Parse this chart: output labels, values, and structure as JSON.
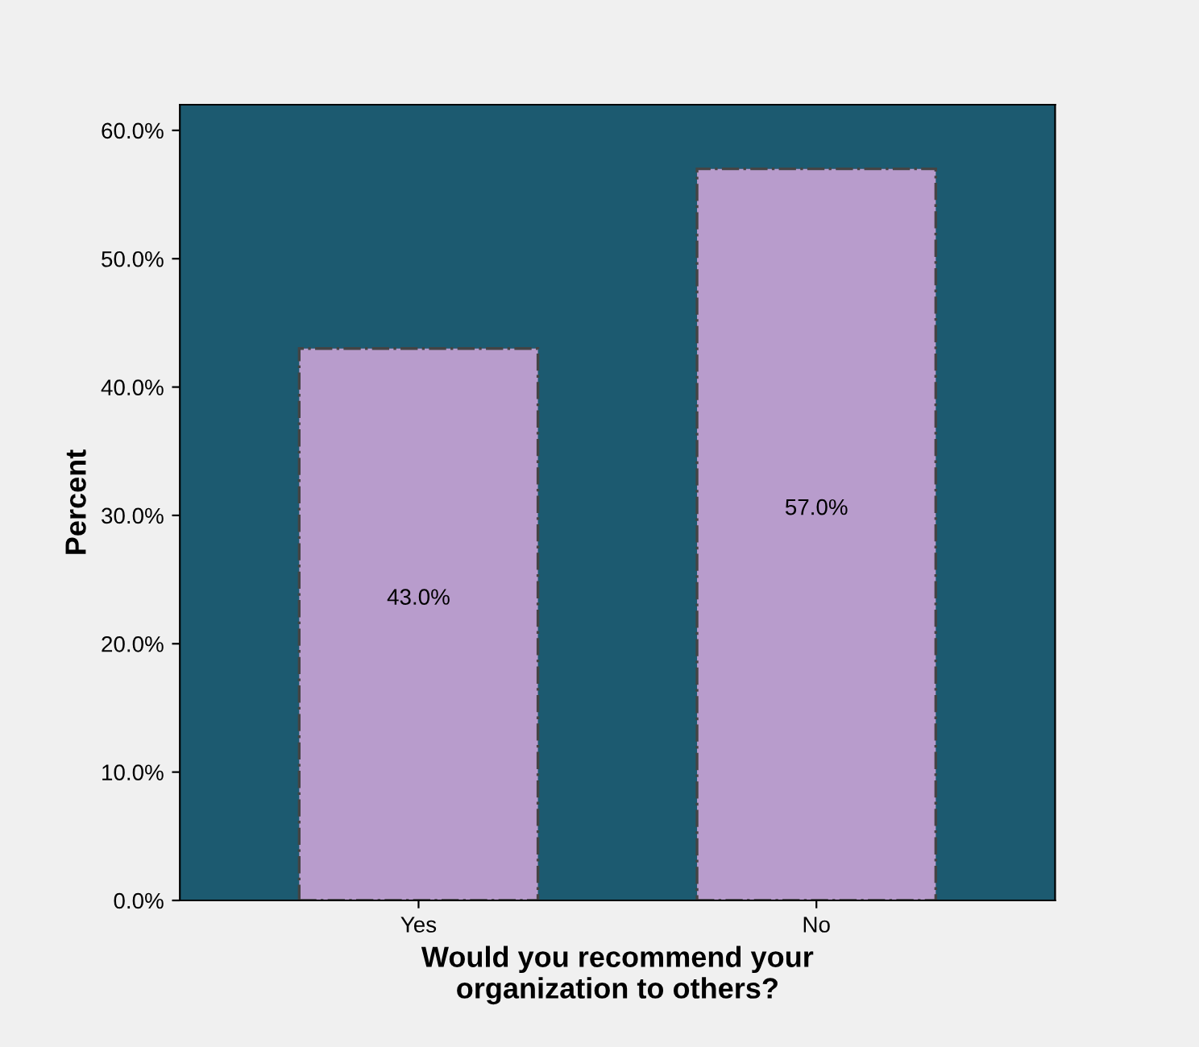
{
  "chart_data": {
    "type": "bar",
    "xlabel": "Would you recommend your\norganization to others?",
    "ylabel": "Percent",
    "categories": [
      "Yes",
      "No"
    ],
    "values": [
      43.0,
      57.0
    ],
    "value_labels": [
      "43.0%",
      "57.0%"
    ],
    "color": "#b89ccc",
    "ylim": [
      0,
      62
    ],
    "yticks": [
      {
        "value": 0,
        "label": "0.0%"
      },
      {
        "value": 10,
        "label": "10.0%"
      },
      {
        "value": 20,
        "label": "20.0%"
      },
      {
        "value": 30,
        "label": "30.0%"
      },
      {
        "value": 40,
        "label": "40.0%"
      },
      {
        "value": 50,
        "label": "50.0%"
      },
      {
        "value": 60,
        "label": "60.0%"
      }
    ],
    "grid": false
  }
}
